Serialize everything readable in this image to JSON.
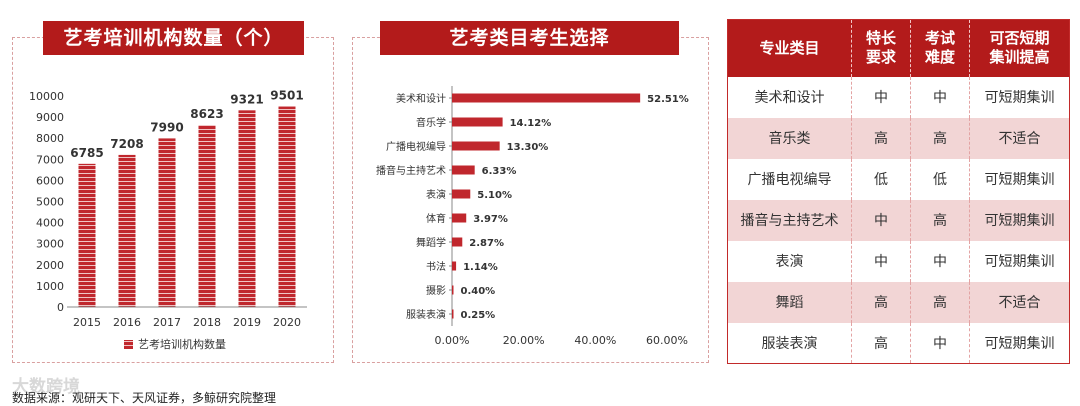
{
  "bar_chart": {
    "title": "艺考培训机构数量（个）",
    "legend": "艺考培训机构数量",
    "yticks": [
      "0",
      "1000",
      "2000",
      "3000",
      "4000",
      "5000",
      "6000",
      "7000",
      "8000",
      "9000",
      "10000"
    ]
  },
  "hbar_chart": {
    "title": "艺考类目考生选择",
    "xticks": [
      "0.00%",
      "20.00%",
      "40.00%",
      "60.00%"
    ],
    "value_labels": [
      "52.51%",
      "14.12%",
      "13.30%",
      "6.33%",
      "5.10%",
      "3.97%",
      "2.87%",
      "1.14%",
      "0.40%",
      "0.25%"
    ]
  },
  "table": {
    "headers": [
      "专业类目",
      "特长要求",
      "考试难度",
      "可否短期集训提高"
    ],
    "rows": [
      [
        "美术和设计",
        "中",
        "中",
        "可短期集训"
      ],
      [
        "音乐类",
        "高",
        "高",
        "不适合"
      ],
      [
        "广播电视编导",
        "低",
        "低",
        "可短期集训"
      ],
      [
        "播音与主持艺术",
        "中",
        "高",
        "可短期集训"
      ],
      [
        "表演",
        "中",
        "中",
        "可短期集训"
      ],
      [
        "舞蹈",
        "高",
        "高",
        "不适合"
      ],
      [
        "服装表演",
        "高",
        "中",
        "可短期集训"
      ]
    ]
  },
  "source": "数据来源：观研天下、天风证券，多鲸研究院整理",
  "watermark": "大数跨境",
  "colors": {
    "accent": "#b31b1b",
    "bar": "#c0272d"
  },
  "chart_data": [
    {
      "type": "bar",
      "title": "艺考培训机构数量（个）",
      "categories": [
        "2015",
        "2016",
        "2017",
        "2018",
        "2019",
        "2020"
      ],
      "series": [
        {
          "name": "艺考培训机构数量",
          "values": [
            6785,
            7208,
            7990,
            8623,
            9321,
            9501
          ]
        }
      ],
      "ylim": [
        0,
        10000
      ],
      "grid": false,
      "legend": "bottom"
    },
    {
      "type": "bar",
      "orientation": "horizontal",
      "title": "艺考类目考生选择",
      "categories": [
        "美术和设计",
        "音乐学",
        "广播电视编导",
        "播音与主持艺术",
        "表演",
        "体育",
        "舞蹈学",
        "书法",
        "摄影",
        "服装表演"
      ],
      "values": [
        52.51,
        14.12,
        13.3,
        6.33,
        5.1,
        3.97,
        2.87,
        1.14,
        0.4,
        0.25
      ],
      "xlim": [
        0,
        60
      ],
      "grid": false
    }
  ]
}
